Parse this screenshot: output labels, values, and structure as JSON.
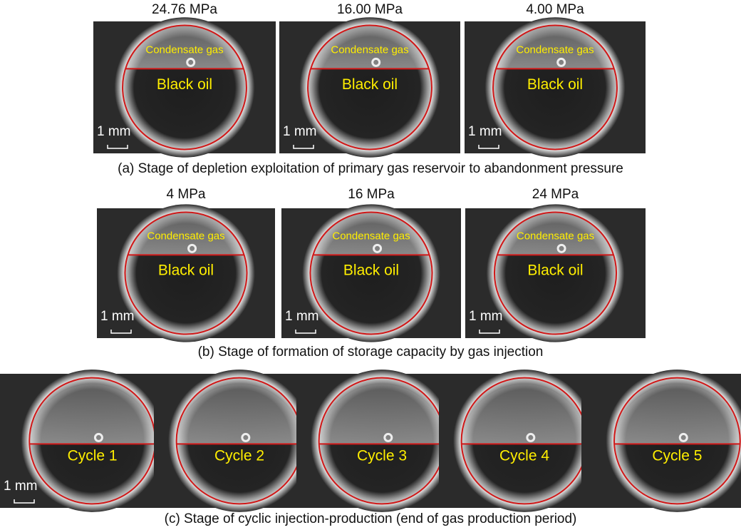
{
  "panels": [
    {
      "caption": "(a) Stage of depletion exploitation of primary gas reservoir to abandonment pressure",
      "images": [
        {
          "title": "24.76 MPa",
          "upper_label": "Condensate gas",
          "lower_label": "Black oil",
          "scale_label": "1 mm"
        },
        {
          "title": "16.00 MPa",
          "upper_label": "Condensate gas",
          "lower_label": "Black oil",
          "scale_label": "1 mm"
        },
        {
          "title": "4.00 MPa",
          "upper_label": "Condensate gas",
          "lower_label": "Black oil",
          "scale_label": "1 mm"
        }
      ]
    },
    {
      "caption": "(b) Stage of formation of storage capacity by gas injection",
      "images": [
        {
          "title": "4 MPa",
          "upper_label": "Condensate gas",
          "lower_label": "Black oil",
          "scale_label": "1 mm"
        },
        {
          "title": "16 MPa",
          "upper_label": "Condensate gas",
          "lower_label": "Black oil",
          "scale_label": "1 mm"
        },
        {
          "title": "24 MPa",
          "upper_label": "Condensate gas",
          "lower_label": "Black oil",
          "scale_label": "1 mm"
        }
      ]
    },
    {
      "caption": "(c) Stage of cyclic injection-production (end of gas production period)",
      "images": [
        {
          "lower_label": "Cycle 1",
          "scale_label": "1 mm"
        },
        {
          "lower_label": "Cycle 2"
        },
        {
          "lower_label": "Cycle 3"
        },
        {
          "lower_label": "Cycle 4"
        },
        {
          "lower_label": "Cycle 5"
        }
      ]
    }
  ]
}
